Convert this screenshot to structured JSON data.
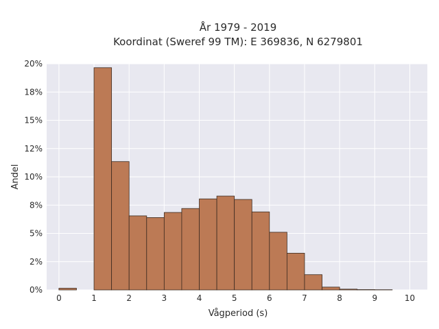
{
  "chart_data": {
    "type": "bar",
    "title_line1": "År 1979 - 2019",
    "title_line2": "Koordinat (Sweref 99 TM): E 369836, N 6279801",
    "xlabel": "Vågperiod (s)",
    "ylabel": "Andel",
    "xlim": [
      -0.35,
      10.5
    ],
    "ylim": [
      0,
      0.2
    ],
    "x_ticks": [
      0,
      1,
      2,
      3,
      4,
      5,
      6,
      7,
      8,
      9,
      10
    ],
    "y_ticks": [
      {
        "value": 0,
        "label": "0%"
      },
      {
        "value": 0.025,
        "label": "2%"
      },
      {
        "value": 0.05,
        "label": "5%"
      },
      {
        "value": 0.075,
        "label": "8%"
      },
      {
        "value": 0.1,
        "label": "10%"
      },
      {
        "value": 0.125,
        "label": "12%"
      },
      {
        "value": 0.15,
        "label": "15%"
      },
      {
        "value": 0.175,
        "label": "18%"
      },
      {
        "value": 0.2,
        "label": "20%"
      }
    ],
    "bin_width": 0.5,
    "bins": [
      {
        "x0": 0.0,
        "value": 0.0015
      },
      {
        "x0": 0.5,
        "value": 0.0
      },
      {
        "x0": 1.0,
        "value": 0.1965
      },
      {
        "x0": 1.5,
        "value": 0.1135
      },
      {
        "x0": 2.0,
        "value": 0.0655
      },
      {
        "x0": 2.5,
        "value": 0.064
      },
      {
        "x0": 3.0,
        "value": 0.0685
      },
      {
        "x0": 3.5,
        "value": 0.072
      },
      {
        "x0": 4.0,
        "value": 0.0805
      },
      {
        "x0": 4.5,
        "value": 0.083
      },
      {
        "x0": 5.0,
        "value": 0.08
      },
      {
        "x0": 5.5,
        "value": 0.069
      },
      {
        "x0": 6.0,
        "value": 0.051
      },
      {
        "x0": 6.5,
        "value": 0.0325
      },
      {
        "x0": 7.0,
        "value": 0.0135
      },
      {
        "x0": 7.5,
        "value": 0.0025
      },
      {
        "x0": 8.0,
        "value": 0.0007
      },
      {
        "x0": 8.5,
        "value": 0.0003
      },
      {
        "x0": 9.0,
        "value": 0.0002
      },
      {
        "x0": 9.5,
        "value": 0.0
      }
    ],
    "grid": true,
    "colors": {
      "bar_fill": "#bc7a55",
      "bar_stroke": "#3a2a20",
      "plot_bg": "#e8e8f0",
      "grid": "#ffffff"
    }
  }
}
